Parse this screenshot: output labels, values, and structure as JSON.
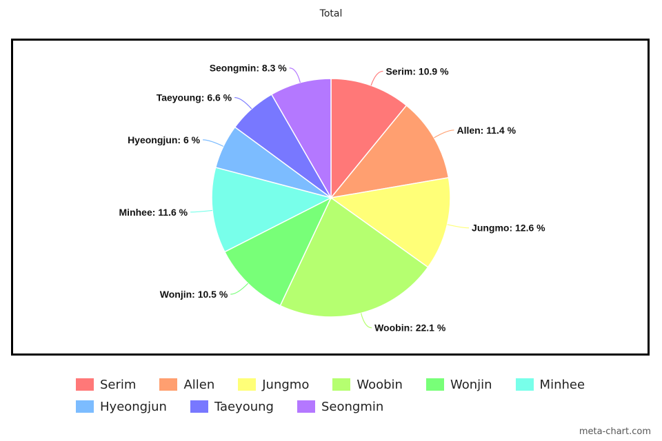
{
  "chart_data": {
    "type": "pie",
    "title": "Total",
    "categories": [
      "Serim",
      "Allen",
      "Jungmo",
      "Woobin",
      "Wonjin",
      "Minhee",
      "Hyeongjun",
      "Taeyoung",
      "Seongmin"
    ],
    "values": [
      10.9,
      11.4,
      12.6,
      22.1,
      10.5,
      11.6,
      6,
      6.6,
      8.3
    ],
    "labels": [
      "Serim: 10.9 %",
      "Allen: 11.4 %",
      "Jungmo: 12.6 %",
      "Woobin: 22.1 %",
      "Wonjin: 10.5 %",
      "Minhee: 11.6 %",
      "Hyeongjun: 6 %",
      "Taeyoung: 6.6 %",
      "Seongmin: 8.3 %"
    ],
    "colors": [
      "#ff7878",
      "#ff9f70",
      "#ffff78",
      "#b5ff70",
      "#78ff78",
      "#78ffea",
      "#7cbcff",
      "#7878ff",
      "#b478ff"
    ],
    "legend_position": "bottom"
  },
  "watermark": "meta-chart.com"
}
